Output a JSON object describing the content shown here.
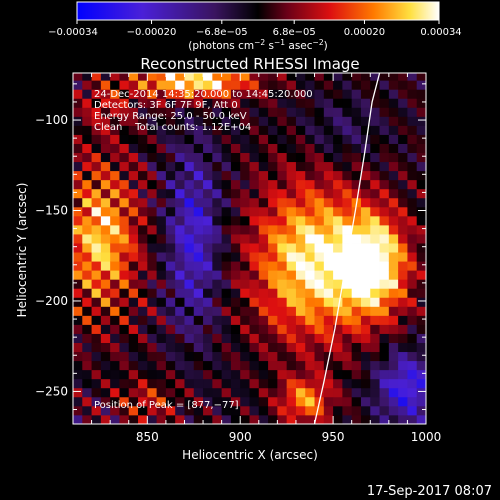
{
  "chart_data": {
    "type": "heatmap",
    "title": "Reconstructed RHESSI Image",
    "xlabel": "Heliocentric X (arcsec)",
    "ylabel": "Heliocentric Y (arcsec)",
    "xlim": [
      810,
      1000
    ],
    "ylim": [
      -268,
      -74
    ],
    "x_ticks": [
      {
        "value": 850,
        "label": "850"
      },
      {
        "value": 900,
        "label": "900"
      },
      {
        "value": 950,
        "label": "950"
      },
      {
        "value": 1000,
        "label": "1000"
      }
    ],
    "y_ticks": [
      {
        "value": -100,
        "label": "−100"
      },
      {
        "value": -150,
        "label": "−150"
      },
      {
        "value": -200,
        "label": "−200"
      },
      {
        "value": -250,
        "label": "−250"
      }
    ],
    "colorbar": {
      "range": [
        -0.00034,
        0.00034
      ],
      "ticks": [
        {
          "value": -0.00034,
          "label": "−0.00034"
        },
        {
          "value": -0.0002,
          "label": "−0.00020"
        },
        {
          "value": -6.8e-05,
          "label": "−6.8e−05"
        },
        {
          "value": 6.8e-05,
          "label": "6.8e−05"
        },
        {
          "value": 0.0002,
          "label": "0.00020"
        },
        {
          "value": 0.00034,
          "label": "0.00034"
        }
      ],
      "unit_label": {
        "pre": "(photons cm",
        "sup1": "−2",
        "mid1": " s",
        "sup2": "−1",
        "mid2": " asec",
        "sup3": "−2",
        "post": ")"
      },
      "colors": [
        "#0000ff",
        "#000000",
        "#ff0000",
        "#ffffff"
      ]
    },
    "info_lines": [
      "24-Dec-2014 14:35:20.000 to 14:45:20.000",
      "Detectors: 3F 6F 7F 9F, Att 0",
      "Energy Range: 25.0 - 50.0 keV",
      "Clean    Total counts: 1.12E+04"
    ],
    "peak_label": "Position of Peak = [877,−77]",
    "limb_curve": {
      "x": [
        940,
        945,
        951,
        956,
        962,
        967,
        971,
        975
      ],
      "y": [
        -268,
        -245,
        -215,
        -185,
        -150,
        -118,
        -90,
        -74
      ]
    },
    "sources": [
      {
        "x": 825,
        "y": -165,
        "sx": 14,
        "sy": 28,
        "amp": 0.00028
      },
      {
        "x": 938,
        "y": -178,
        "sx": 22,
        "sy": 30,
        "amp": 0.00032
      },
      {
        "x": 972,
        "y": -180,
        "sx": 13,
        "sy": 20,
        "amp": 0.00034
      },
      {
        "x": 875,
        "y": -78,
        "sx": 22,
        "sy": 7,
        "amp": 0.00034
      },
      {
        "x": 935,
        "y": -255,
        "sx": 10,
        "sy": 9,
        "amp": 0.00022
      },
      {
        "x": 850,
        "y": -255,
        "sx": 12,
        "sy": 8,
        "amp": 0.00012
      },
      {
        "x": 875,
        "y": -165,
        "sx": 10,
        "sy": 35,
        "amp": -0.00022
      },
      {
        "x": 990,
        "y": -248,
        "sx": 12,
        "sy": 14,
        "amp": -0.00025
      },
      {
        "x": 955,
        "y": -105,
        "sx": 15,
        "sy": 12,
        "amp": -8e-05
      },
      {
        "x": 828,
        "y": -92,
        "sx": 10,
        "sy": 10,
        "amp": 0.0001
      }
    ]
  },
  "footer": {
    "timestamp": "17-Sep-2017 08:07"
  }
}
